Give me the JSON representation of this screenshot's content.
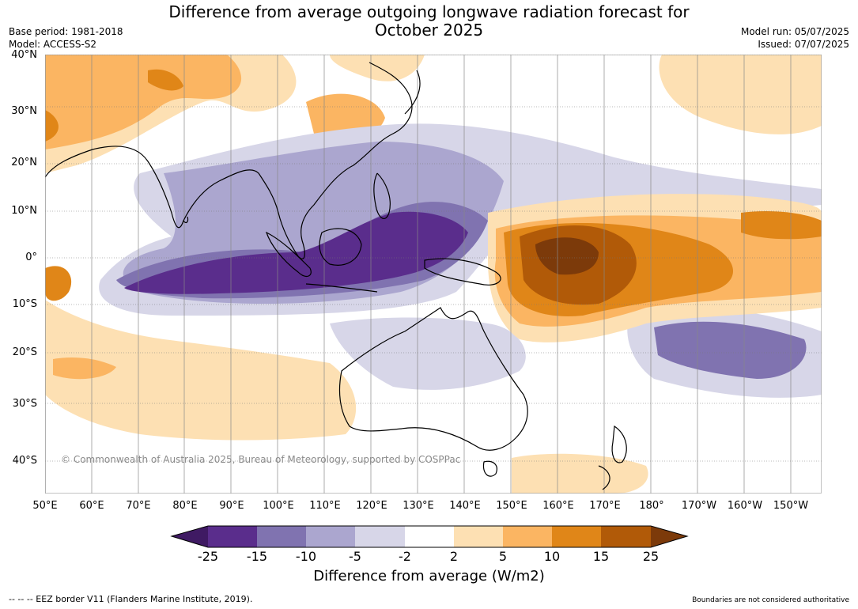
{
  "title": {
    "line1": "Difference from average outgoing longwave radiation forecast for",
    "line2": "October 2025"
  },
  "meta_left": {
    "base_period": "Base period: 1981-2018",
    "model": "Model: ACCESS-S2"
  },
  "meta_right": {
    "model_run": "Model run: 05/07/2025",
    "issued": "Issued: 07/07/2025"
  },
  "lat_labels": [
    "40°N",
    "30°N",
    "20°N",
    "10°N",
    "0°",
    "10°S",
    "20°S",
    "30°S",
    "40°S"
  ],
  "lon_labels": [
    "50°E",
    "60°E",
    "70°E",
    "80°E",
    "90°E",
    "100°E",
    "110°E",
    "120°E",
    "130°E",
    "140°E",
    "150°E",
    "160°E",
    "170°E",
    "180°",
    "170°W",
    "160°W",
    "150°W"
  ],
  "copyright": "© Commonwealth of Australia 2025, Bureau of Meteorology, supported by COSPPac",
  "colorbar": {
    "title": "Difference from average (W/m2)",
    "labels": [
      "-25",
      "-15",
      "-10",
      "-5",
      "-2",
      "2",
      "5",
      "10",
      "15",
      "25"
    ],
    "colors": [
      "#3f1a63",
      "#5a2d8c",
      "#8073b0",
      "#aba6cf",
      "#d7d6e8",
      "#ffffff",
      "#fde0b3",
      "#fbb562",
      "#e08618",
      "#b15a08",
      "#7c3a0a"
    ]
  },
  "footer": {
    "eez": "--  --  -- EEZ border V11 (Flanders Marine Institute, 2019).",
    "boundaries": "Boundaries are not considered authoritative"
  },
  "colors": {
    "very_low": "#5a2d8c",
    "low": "#8073b0",
    "mid_low": "#aba6cf",
    "slight_low": "#d7d6e8",
    "slight_high": "#fde0b3",
    "mid_high": "#fbb562",
    "high": "#e08618",
    "very_high": "#b15a08",
    "extreme_high": "#7c3a0a"
  }
}
